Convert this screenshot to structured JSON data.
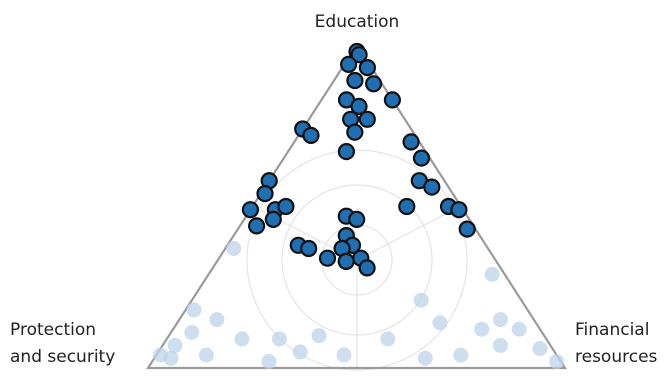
{
  "chart_data": {
    "type": "ternary",
    "axes": [
      {
        "label_lines": [
          "Education"
        ]
      },
      {
        "label_lines": [
          "Protection",
          "and security"
        ]
      },
      {
        "label_lines": [
          "Financial",
          "resources"
        ]
      }
    ],
    "series": [
      {
        "color": "#bcd3e8",
        "opacity": 0.75,
        "edge": "none",
        "values": [
          [
            0.04,
            0.95,
            0.01
          ],
          [
            0.07,
            0.9,
            0.03
          ],
          [
            0.11,
            0.84,
            0.05
          ],
          [
            0.15,
            0.76,
            0.09
          ],
          [
            0.09,
            0.73,
            0.18
          ],
          [
            0.18,
            0.8,
            0.02
          ],
          [
            0.37,
            0.61,
            0.02
          ],
          [
            0.09,
            0.64,
            0.27
          ],
          [
            0.1,
            0.54,
            0.36
          ],
          [
            0.04,
            0.51,
            0.45
          ],
          [
            0.09,
            0.38,
            0.53
          ],
          [
            0.21,
            0.24,
            0.55
          ],
          [
            0.14,
            0.23,
            0.63
          ],
          [
            0.12,
            0.14,
            0.74
          ],
          [
            0.29,
            0.03,
            0.68
          ],
          [
            0.15,
            0.08,
            0.77
          ],
          [
            0.12,
            0.05,
            0.83
          ],
          [
            0.06,
            0.03,
            0.91
          ],
          [
            0.02,
            0.01,
            0.97
          ],
          [
            0.04,
            0.23,
            0.73
          ],
          [
            0.04,
            0.84,
            0.12
          ],
          [
            0.02,
            0.7,
            0.28
          ],
          [
            0.03,
            0.32,
            0.65
          ],
          [
            0.05,
            0.61,
            0.34
          ],
          [
            0.07,
            0.12,
            0.81
          ],
          [
            0.03,
            0.93,
            0.04
          ]
        ]
      },
      {
        "color": "#1f6fb2",
        "opacity": 1,
        "edge": "#111111",
        "values": [
          [
            0.98,
            0.01,
            0.01
          ],
          [
            0.97,
            0.01,
            0.02
          ],
          [
            0.94,
            0.05,
            0.01
          ],
          [
            0.93,
            0.01,
            0.06
          ],
          [
            0.89,
            0.06,
            0.05
          ],
          [
            0.88,
            0.02,
            0.1
          ],
          [
            0.83,
            0.0,
            0.17
          ],
          [
            0.83,
            0.11,
            0.06
          ],
          [
            0.81,
            0.09,
            0.1
          ],
          [
            0.77,
            0.13,
            0.1
          ],
          [
            0.77,
            0.09,
            0.14
          ],
          [
            0.73,
            0.14,
            0.13
          ],
          [
            0.74,
            0.26,
            0.0
          ],
          [
            0.72,
            0.25,
            0.03
          ],
          [
            0.67,
            0.19,
            0.14
          ],
          [
            0.7,
            0.02,
            0.28
          ],
          [
            0.65,
            0.02,
            0.33
          ],
          [
            0.58,
            0.06,
            0.36
          ],
          [
            0.56,
            0.04,
            0.4
          ],
          [
            0.5,
            0.13,
            0.37
          ],
          [
            0.5,
            0.03,
            0.47
          ],
          [
            0.49,
            0.01,
            0.5
          ],
          [
            0.43,
            0.02,
            0.55
          ],
          [
            0.58,
            0.42,
            0.0
          ],
          [
            0.54,
            0.45,
            0.01
          ],
          [
            0.49,
            0.51,
            0.0
          ],
          [
            0.49,
            0.45,
            0.06
          ],
          [
            0.5,
            0.42,
            0.08
          ],
          [
            0.44,
            0.52,
            0.04
          ],
          [
            0.46,
            0.47,
            0.07
          ],
          [
            0.47,
            0.29,
            0.24
          ],
          [
            0.46,
            0.27,
            0.27
          ],
          [
            0.41,
            0.32,
            0.27
          ],
          [
            0.38,
            0.32,
            0.3
          ],
          [
            0.37,
            0.35,
            0.28
          ],
          [
            0.34,
            0.32,
            0.34
          ],
          [
            0.33,
            0.36,
            0.31
          ],
          [
            0.31,
            0.32,
            0.37
          ],
          [
            0.38,
            0.45,
            0.17
          ],
          [
            0.34,
            0.4,
            0.26
          ],
          [
            0.37,
            0.43,
            0.2
          ]
        ]
      }
    ]
  }
}
